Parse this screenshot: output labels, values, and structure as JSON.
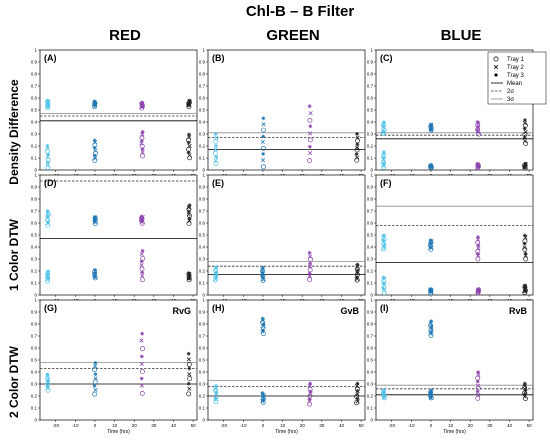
{
  "figure": {
    "title": "Chl-B – B Filter",
    "column_titles": [
      "RED",
      "GREEN",
      "BLUE"
    ],
    "row_titles": [
      "Density Difference",
      "1 Color DTW",
      "2 Color DTW"
    ],
    "xlabel": "Time (hrs)",
    "colors": {
      "tray1": "#4fc3e8",
      "tray2": "#1f77b4",
      "tray3": "#8e44ad",
      "t48": "#222222"
    }
  },
  "legend": {
    "entries": [
      {
        "label": "Tray 1",
        "marker": "circle"
      },
      {
        "label": "Tray 2",
        "marker": "cross"
      },
      {
        "label": "Tray 3",
        "marker": "star"
      },
      {
        "label": "Mean",
        "line": "solid"
      },
      {
        "label": "2σ",
        "line": "dashed"
      },
      {
        "label": "3σ",
        "line": "solid"
      }
    ]
  },
  "chart_data": [
    {
      "type": "scatter",
      "panel": "(A)",
      "note": "",
      "xticks": [
        -20,
        -10,
        0,
        10,
        20,
        30,
        40,
        50
      ],
      "ylim": [
        0,
        1
      ],
      "yticks": [
        0,
        0.1,
        0.2,
        0.3,
        0.4,
        0.5,
        0.6,
        0.7,
        0.8,
        0.9,
        1
      ],
      "lines": {
        "mean": 0.41,
        "two_sigma": 0.45,
        "three_sigma": 0.47
      },
      "groups": [
        {
          "x": -24,
          "low": [
            0.02,
            0.2
          ],
          "high": [
            0.52,
            0.58
          ]
        },
        {
          "x": 0,
          "low": [
            0.08,
            0.25
          ],
          "high": [
            0.53,
            0.57
          ]
        },
        {
          "x": 24,
          "low": [
            0.12,
            0.32
          ],
          "high": [
            0.52,
            0.56
          ]
        },
        {
          "x": 48,
          "low": [
            0.1,
            0.3
          ],
          "high": [
            0.53,
            0.58
          ]
        }
      ]
    },
    {
      "type": "scatter",
      "panel": "(B)",
      "note": "",
      "xticks": [
        -20,
        -10,
        0,
        10,
        20,
        30,
        40,
        50
      ],
      "ylim": [
        0,
        1
      ],
      "yticks": [
        0,
        0.1,
        0.2,
        0.3,
        0.4,
        0.5,
        0.6,
        0.7,
        0.8,
        0.9,
        1
      ],
      "lines": {
        "mean": 0.17,
        "two_sigma": 0.27,
        "three_sigma": 0.31
      },
      "groups": [
        {
          "x": -24,
          "low": [
            0.05,
            0.3
          ]
        },
        {
          "x": 0,
          "low": [
            0.03,
            0.43
          ]
        },
        {
          "x": 24,
          "low": [
            0.08,
            0.53
          ]
        },
        {
          "x": 48,
          "low": [
            0.08,
            0.3
          ]
        }
      ]
    },
    {
      "type": "scatter",
      "panel": "(C)",
      "note": "",
      "xticks": [
        -20,
        -10,
        0,
        10,
        20,
        30,
        40,
        50
      ],
      "ylim": [
        0,
        1
      ],
      "yticks": [
        0,
        0.1,
        0.2,
        0.3,
        0.4,
        0.5,
        0.6,
        0.7,
        0.8,
        0.9,
        1
      ],
      "lines": {
        "mean": 0.26,
        "two_sigma": 0.29,
        "three_sigma": 0.31
      },
      "groups": [
        {
          "x": -24,
          "low": [
            0.02,
            0.15
          ],
          "high": [
            0.3,
            0.4
          ]
        },
        {
          "x": 0,
          "low": [
            0.02,
            0.04
          ],
          "high": [
            0.33,
            0.38
          ]
        },
        {
          "x": 24,
          "low": [
            0.02,
            0.05
          ],
          "high": [
            0.3,
            0.4
          ]
        },
        {
          "x": 48,
          "low": [
            0.02,
            0.05
          ],
          "high": [
            0.22,
            0.42
          ]
        }
      ]
    },
    {
      "type": "scatter",
      "panel": "(D)",
      "note": "",
      "xticks": [
        -20,
        -10,
        0,
        10,
        20,
        30,
        40,
        50
      ],
      "ylim": [
        0,
        1
      ],
      "yticks": [
        0,
        0.1,
        0.2,
        0.3,
        0.4,
        0.5,
        0.6,
        0.7,
        0.8,
        0.9,
        1
      ],
      "lines": {
        "mean": 0.47,
        "two_sigma": 0.95,
        "three_sigma": null
      },
      "groups": [
        {
          "x": -24,
          "low": [
            0.12,
            0.2
          ],
          "high": [
            0.58,
            0.7
          ]
        },
        {
          "x": 0,
          "low": [
            0.14,
            0.21
          ],
          "high": [
            0.6,
            0.65
          ]
        },
        {
          "x": 24,
          "low": [
            0.13,
            0.37
          ],
          "high": [
            0.6,
            0.66
          ]
        },
        {
          "x": 48,
          "low": [
            0.13,
            0.18
          ],
          "high": [
            0.6,
            0.75
          ]
        }
      ]
    },
    {
      "type": "scatter",
      "panel": "(E)",
      "note": "",
      "xticks": [
        -20,
        -10,
        0,
        10,
        20,
        30,
        40,
        50
      ],
      "ylim": [
        0,
        1
      ],
      "yticks": [
        0,
        0.1,
        0.2,
        0.3,
        0.4,
        0.5,
        0.6,
        0.7,
        0.8,
        0.9,
        1
      ],
      "lines": {
        "mean": 0.17,
        "two_sigma": 0.24,
        "three_sigma": 0.28
      },
      "groups": [
        {
          "x": -24,
          "low": [
            0.12,
            0.23
          ]
        },
        {
          "x": 0,
          "low": [
            0.12,
            0.23
          ]
        },
        {
          "x": 24,
          "low": [
            0.13,
            0.35
          ]
        },
        {
          "x": 48,
          "low": [
            0.12,
            0.25
          ]
        }
      ]
    },
    {
      "type": "scatter",
      "panel": "(F)",
      "note": "",
      "xticks": [
        -20,
        -10,
        0,
        10,
        20,
        30,
        40,
        50
      ],
      "ylim": [
        0,
        1
      ],
      "yticks": [
        0,
        0.1,
        0.2,
        0.3,
        0.4,
        0.5,
        0.6,
        0.7,
        0.8,
        0.9,
        1
      ],
      "lines": {
        "mean": 0.27,
        "two_sigma": 0.58,
        "three_sigma": 0.74
      },
      "groups": [
        {
          "x": -24,
          "low": [
            0.02,
            0.15
          ],
          "high": [
            0.38,
            0.5
          ]
        },
        {
          "x": 0,
          "low": [
            0.02,
            0.05
          ],
          "high": [
            0.38,
            0.46
          ]
        },
        {
          "x": 24,
          "low": [
            0.02,
            0.05
          ],
          "high": [
            0.3,
            0.48
          ]
        },
        {
          "x": 48,
          "low": [
            0.02,
            0.08
          ],
          "high": [
            0.3,
            0.5
          ]
        }
      ]
    },
    {
      "type": "scatter",
      "panel": "(G)",
      "note": "RvG",
      "xticks": [
        -20,
        -10,
        0,
        10,
        20,
        30,
        40,
        50
      ],
      "ylim": [
        0,
        1
      ],
      "yticks": [
        0,
        0.1,
        0.2,
        0.3,
        0.4,
        0.5,
        0.6,
        0.7,
        0.8,
        0.9,
        1
      ],
      "lines": {
        "mean": 0.3,
        "two_sigma": 0.43,
        "three_sigma": 0.48
      },
      "groups": [
        {
          "x": -24,
          "low": [
            0.25,
            0.38
          ]
        },
        {
          "x": 0,
          "low": [
            0.22,
            0.48
          ]
        },
        {
          "x": 24,
          "low": [
            0.22,
            0.72
          ]
        },
        {
          "x": 48,
          "low": [
            0.22,
            0.55
          ]
        }
      ]
    },
    {
      "type": "scatter",
      "panel": "(H)",
      "note": "GvB",
      "xticks": [
        -20,
        -10,
        0,
        10,
        20,
        30,
        40,
        50
      ],
      "ylim": [
        0,
        1
      ],
      "yticks": [
        0,
        0.1,
        0.2,
        0.3,
        0.4,
        0.5,
        0.6,
        0.7,
        0.8,
        0.9,
        1
      ],
      "lines": {
        "mean": 0.2,
        "two_sigma": 0.28,
        "three_sigma": 0.33
      },
      "groups": [
        {
          "x": -24,
          "low": [
            0.15,
            0.28
          ]
        },
        {
          "x": 0,
          "low": [
            0.15,
            0.22
          ],
          "high": [
            0.72,
            0.85
          ]
        },
        {
          "x": 24,
          "low": [
            0.13,
            0.3
          ]
        },
        {
          "x": 48,
          "low": [
            0.14,
            0.3
          ]
        }
      ]
    },
    {
      "type": "scatter",
      "panel": "(I)",
      "note": "RvB",
      "xticks": [
        -20,
        -10,
        0,
        10,
        20,
        30,
        40,
        50
      ],
      "ylim": [
        0,
        1
      ],
      "yticks": [
        0,
        0.1,
        0.2,
        0.3,
        0.4,
        0.5,
        0.6,
        0.7,
        0.8,
        0.9,
        1
      ],
      "lines": {
        "mean": 0.21,
        "two_sigma": 0.26,
        "three_sigma": 0.29
      },
      "groups": [
        {
          "x": -24,
          "low": [
            0.18,
            0.25
          ]
        },
        {
          "x": 0,
          "low": [
            0.18,
            0.25
          ],
          "high": [
            0.7,
            0.82
          ]
        },
        {
          "x": 24,
          "low": [
            0.18,
            0.4
          ]
        },
        {
          "x": 48,
          "low": [
            0.18,
            0.3
          ]
        }
      ]
    }
  ]
}
